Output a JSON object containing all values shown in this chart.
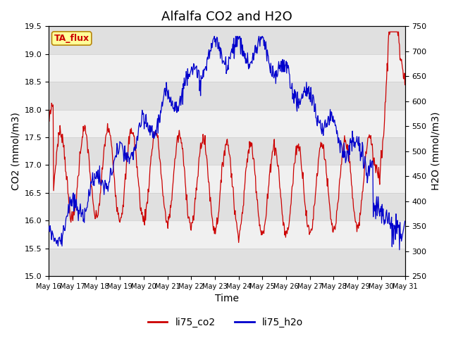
{
  "title": "Alfalfa CO2 and H2O",
  "xlabel": "Time",
  "ylabel_left": "CO2 (mmol/m3)",
  "ylabel_right": "H2O (mmol/m3)",
  "co2_ylim": [
    15.0,
    19.5
  ],
  "h2o_ylim": [
    250,
    750
  ],
  "co2_yticks": [
    15.0,
    15.5,
    16.0,
    16.5,
    17.0,
    17.5,
    18.0,
    18.5,
    19.0,
    19.5
  ],
  "h2o_yticks": [
    250,
    300,
    350,
    400,
    450,
    500,
    550,
    600,
    650,
    700,
    750
  ],
  "xtick_labels": [
    "May 16",
    "May 17",
    "May 18",
    "May 19",
    "May 20",
    "May 21",
    "May 22",
    "May 23",
    "May 24",
    "May 25",
    "May 26",
    "May 27",
    "May 28",
    "May 29",
    "May 30",
    "May 31"
  ],
  "co2_color": "#cc0000",
  "h2o_color": "#0000cc",
  "legend_co2": "li75_co2",
  "legend_h2o": "li75_h2o",
  "annotation_text": "TA_flux",
  "annotation_bg": "#ffff99",
  "annotation_border": "#b8860b",
  "bg_stripe_dark": "#e0e0e0",
  "bg_stripe_light": "#f0f0f0",
  "title_fontsize": 13,
  "label_fontsize": 10,
  "tick_fontsize": 8,
  "legend_fontsize": 10
}
